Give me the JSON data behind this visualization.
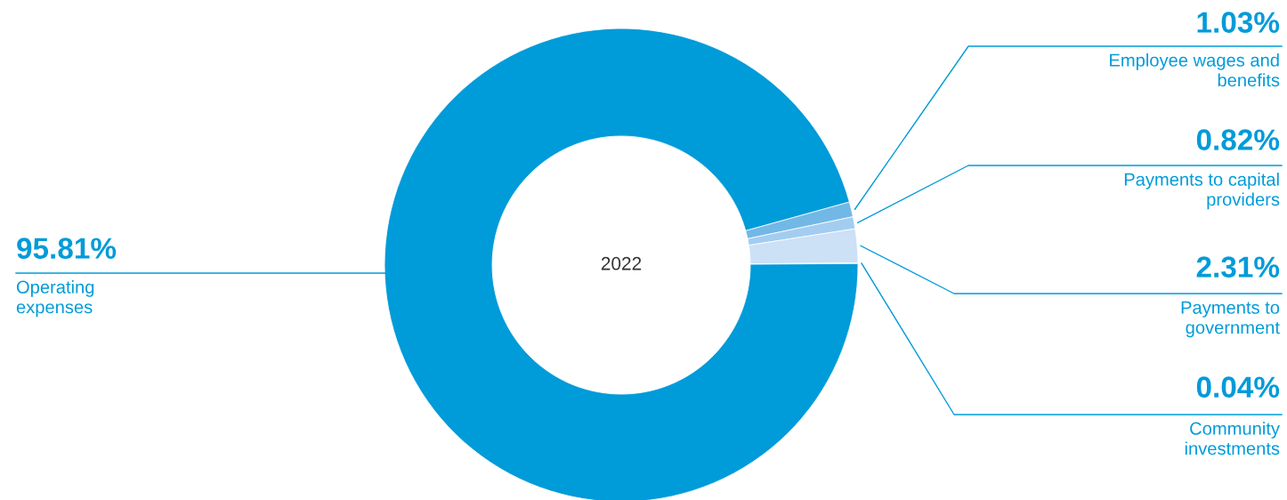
{
  "chart_data": {
    "type": "donut",
    "categories": [
      "Employee wages and\nbenefits",
      "Payments to capital\nproviders",
      "Payments to\ngovernment",
      "Community\ninvestments",
      "Operating\nexpenses"
    ],
    "values": [
      1.03,
      0.82,
      2.31,
      0.04,
      95.81
    ],
    "colors": [
      "#72b8e6",
      "#a3cdf0",
      "#cce0f6",
      "#e6f0fb",
      "#009bd9"
    ],
    "value_labels": [
      "1.03%",
      "0.82%",
      "2.31%",
      "0.04%",
      "95.81%"
    ],
    "annotations": [
      "2022"
    ]
  }
}
